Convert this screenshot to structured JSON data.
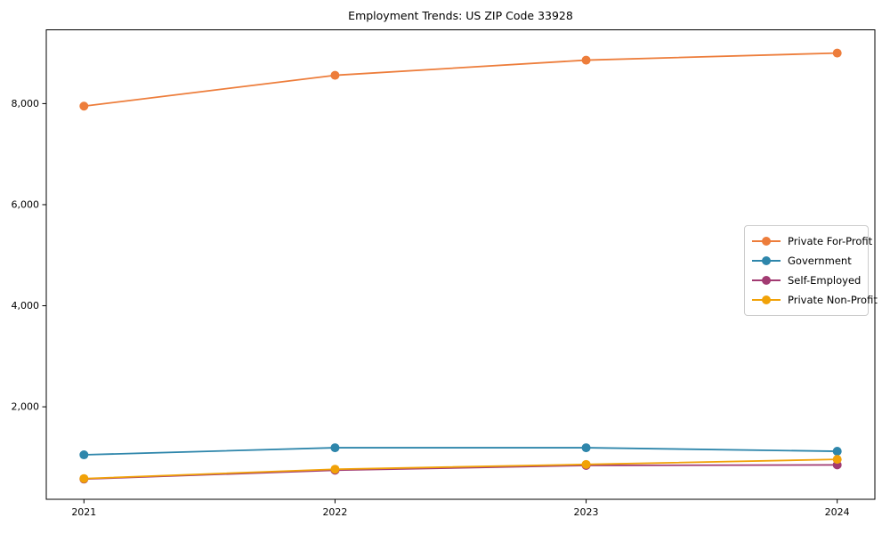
{
  "chart_data": {
    "type": "line",
    "title": "Employment Trends: US ZIP Code 33928",
    "xlabel": "",
    "ylabel": "",
    "x": [
      2021,
      2022,
      2023,
      2024
    ],
    "xtick_labels": [
      "2021",
      "2022",
      "2023",
      "2024"
    ],
    "xlim": [
      2020.85,
      2024.15
    ],
    "ylim": [
      170,
      9460
    ],
    "yticks": [
      2000,
      4000,
      6000,
      8000
    ],
    "ytick_labels": [
      "2,000",
      "4,000",
      "6,000",
      "8,000"
    ],
    "grid": false,
    "legend_position": "center right",
    "series": [
      {
        "name": "Private For-Profit",
        "color": "#ED7D3B",
        "values": [
          7950,
          8560,
          8860,
          9000
        ]
      },
      {
        "name": "Government",
        "color": "#2E86AB",
        "values": [
          1050,
          1190,
          1190,
          1120
        ]
      },
      {
        "name": "Self-Employed",
        "color": "#A23B72",
        "values": [
          570,
          745,
          840,
          850
        ]
      },
      {
        "name": "Private Non-Profit",
        "color": "#F1A208",
        "values": [
          580,
          765,
          860,
          960
        ]
      }
    ]
  }
}
